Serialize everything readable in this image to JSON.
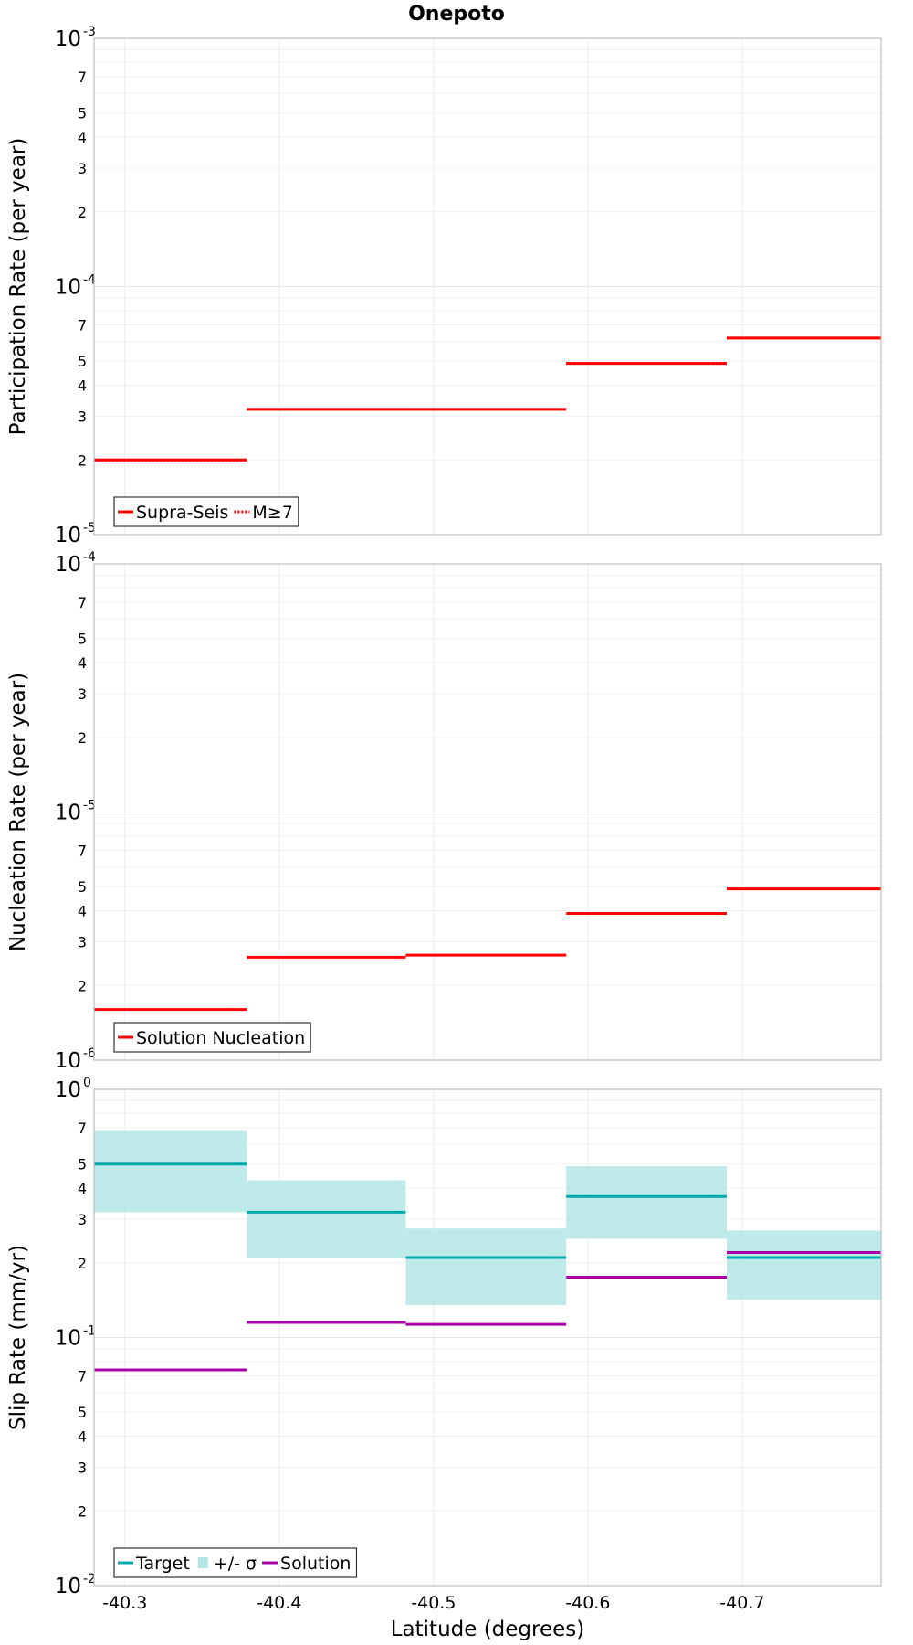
{
  "figure": {
    "title": "Onepoto",
    "x_label": "Latitude (degrees)"
  },
  "chart_data": [
    {
      "type": "line",
      "ylabel": "Participation Rate (per year)",
      "yscale": "log",
      "ylim": [
        1e-05,
        0.001
      ],
      "xlim": [
        -40.28,
        -40.79
      ],
      "x_ticks": [
        -40.3,
        -40.4,
        -40.5,
        -40.6,
        -40.7
      ],
      "grid": true,
      "legend_position": "bottom-left",
      "series": [
        {
          "name": "Supra-Seis",
          "style": "solid",
          "color": "#ff0000",
          "segments": [
            {
              "x": [
                -40.28,
                -40.379
              ],
              "y": 2e-05
            },
            {
              "x": [
                -40.379,
                -40.482
              ],
              "y": 3.2e-05
            },
            {
              "x": [
                -40.482,
                -40.586
              ],
              "y": 3.2e-05
            },
            {
              "x": [
                -40.586,
                -40.69
              ],
              "y": 4.9e-05
            },
            {
              "x": [
                -40.69,
                -40.79
              ],
              "y": 6.2e-05
            }
          ]
        },
        {
          "name": "M≥7",
          "style": "dotted",
          "color": "#ff0000",
          "segments": [
            {
              "x": [
                -40.28,
                -40.379
              ],
              "y": 2e-05
            },
            {
              "x": [
                -40.379,
                -40.482
              ],
              "y": 3.2e-05
            },
            {
              "x": [
                -40.482,
                -40.586
              ],
              "y": 3.2e-05
            },
            {
              "x": [
                -40.586,
                -40.69
              ],
              "y": 4.9e-05
            },
            {
              "x": [
                -40.69,
                -40.79
              ],
              "y": 6.2e-05
            }
          ]
        }
      ]
    },
    {
      "type": "line",
      "ylabel": "Nucleation Rate (per year)",
      "yscale": "log",
      "ylim": [
        1e-06,
        0.0001
      ],
      "xlim": [
        -40.28,
        -40.79
      ],
      "x_ticks": [
        -40.3,
        -40.4,
        -40.5,
        -40.6,
        -40.7
      ],
      "grid": true,
      "legend_position": "bottom-left",
      "series": [
        {
          "name": "Solution Nucleation",
          "style": "solid",
          "color": "#ff0000",
          "segments": [
            {
              "x": [
                -40.28,
                -40.379
              ],
              "y": 1.6e-06
            },
            {
              "x": [
                -40.379,
                -40.482
              ],
              "y": 2.6e-06
            },
            {
              "x": [
                -40.482,
                -40.586
              ],
              "y": 2.65e-06
            },
            {
              "x": [
                -40.586,
                -40.69
              ],
              "y": 3.9e-06
            },
            {
              "x": [
                -40.69,
                -40.79
              ],
              "y": 4.9e-06
            }
          ]
        }
      ]
    },
    {
      "type": "line",
      "ylabel": "Slip Rate (mm/yr)",
      "yscale": "log",
      "ylim": [
        0.01,
        1
      ],
      "xlim": [
        -40.28,
        -40.79
      ],
      "x_ticks": [
        -40.3,
        -40.4,
        -40.5,
        -40.6,
        -40.7
      ],
      "grid": true,
      "legend_position": "bottom-left",
      "legend_entries": [
        "Target",
        "+/- σ",
        "Solution"
      ],
      "series": [
        {
          "name": "Target",
          "style": "solid",
          "color": "#00aaaa",
          "band_color": "#b4e6e6",
          "segments": [
            {
              "x": [
                -40.28,
                -40.379
              ],
              "y": 0.5,
              "lo": 0.32,
              "hi": 0.68
            },
            {
              "x": [
                -40.379,
                -40.482
              ],
              "y": 0.32,
              "lo": 0.21,
              "hi": 0.43
            },
            {
              "x": [
                -40.482,
                -40.586
              ],
              "y": 0.21,
              "lo": 0.135,
              "hi": 0.275
            },
            {
              "x": [
                -40.586,
                -40.69
              ],
              "y": 0.37,
              "lo": 0.25,
              "hi": 0.49
            },
            {
              "x": [
                -40.69,
                -40.79
              ],
              "y": 0.21,
              "lo": 0.142,
              "hi": 0.27
            }
          ]
        },
        {
          "name": "Solution",
          "style": "solid",
          "color": "#aa00aa",
          "segments": [
            {
              "x": [
                -40.28,
                -40.379
              ],
              "y": 0.074
            },
            {
              "x": [
                -40.379,
                -40.482
              ],
              "y": 0.115
            },
            {
              "x": [
                -40.482,
                -40.586
              ],
              "y": 0.113
            },
            {
              "x": [
                -40.586,
                -40.69
              ],
              "y": 0.175
            },
            {
              "x": [
                -40.69,
                -40.79
              ],
              "y": 0.22
            }
          ]
        }
      ]
    }
  ]
}
